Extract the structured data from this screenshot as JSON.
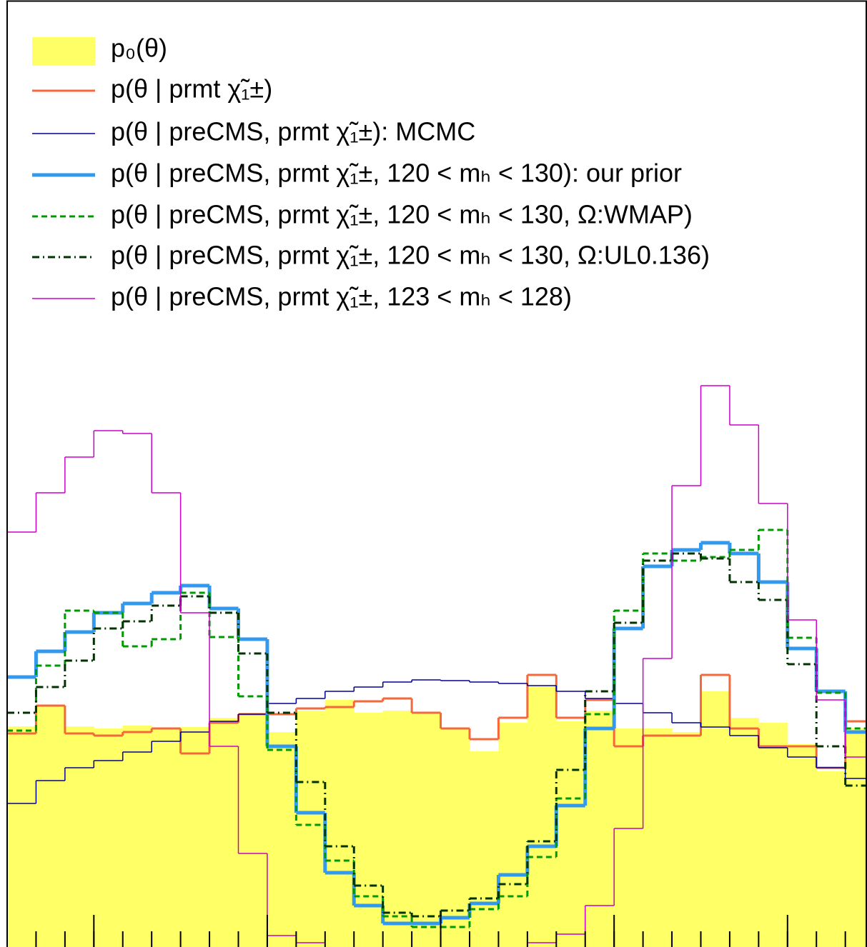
{
  "chart_data": {
    "type": "histogram",
    "bins": [
      0,
      1,
      2,
      3,
      4,
      5,
      6,
      7,
      8,
      9,
      10,
      11,
      12,
      13,
      14,
      15,
      16,
      17,
      18,
      19,
      20,
      21,
      22,
      23,
      24,
      25,
      26,
      27,
      28,
      29,
      30
    ],
    "xlim": [
      0,
      29.75
    ],
    "ylim": [
      0,
      1324
    ],
    "xticks": [
      1,
      2,
      3,
      4,
      5,
      6,
      7,
      8,
      9,
      10,
      11,
      12,
      13,
      14,
      15,
      16,
      17,
      18,
      19,
      20,
      21,
      22,
      23,
      24,
      25,
      26,
      27,
      28,
      29
    ],
    "major_xticks": [
      3,
      9,
      15,
      21,
      27
    ],
    "series": [
      {
        "name": "p₀(θ)",
        "color": "#ffff66",
        "style": "fill",
        "line_width": 0,
        "dash": "none",
        "values": [
          309,
          338,
          309,
          306,
          310,
          306,
          308,
          321,
          326,
          301,
          331,
          346,
          328,
          331,
          326,
          306,
          274,
          314,
          366,
          316,
          331,
          306,
          306,
          301,
          358,
          321,
          314,
          284,
          246,
          306
        ]
      },
      {
        "name": "p(θ | prmt χ̃₁±)",
        "color": "#f4683a",
        "style": "line",
        "line_width": 3,
        "dash": "none",
        "values": [
          299,
          338,
          299,
          296,
          301,
          306,
          271,
          314,
          326,
          326,
          334,
          336,
          344,
          348,
          328,
          306,
          291,
          321,
          381,
          321,
          346,
          281,
          296,
          296,
          381,
          306,
          281,
          281,
          251,
          316
        ]
      },
      {
        "name": "p(θ | preCMS, prmt χ̃₁±): MCMC",
        "color": "#000099",
        "style": "line",
        "line_width": 1.5,
        "dash": "none",
        "values": [
          201,
          233,
          251,
          261,
          273,
          288,
          301,
          316,
          326,
          341,
          348,
          358,
          364,
          371,
          374,
          373,
          371,
          369,
          366,
          358,
          348,
          341,
          328,
          314,
          308,
          296,
          279,
          266,
          251,
          236
        ]
      },
      {
        "name": "p(θ | preCMS, prmt χ̃₁±, 120 < mₕ < 130): our prior",
        "color": "#3399ee",
        "style": "line",
        "line_width": 5,
        "dash": "none",
        "values": [
          378,
          414,
          441,
          468,
          481,
          496,
          506,
          474,
          431,
          281,
          188,
          104,
          58,
          33,
          33,
          41,
          61,
          101,
          141,
          198,
          306,
          446,
          533,
          556,
          566,
          551,
          511,
          418,
          358,
          301
        ]
      },
      {
        "name": "p(θ | preCMS, prmt χ̃₁±, 120 < mₕ < 130,  Ω:WMAP)",
        "color": "#009900",
        "style": "line",
        "line_width": 3,
        "dash": "8 5",
        "values": [
          303,
          394,
          471,
          468,
          421,
          431,
          496,
          434,
          351,
          276,
          171,
          121,
          71,
          43,
          28,
          28,
          53,
          71,
          126,
          208,
          326,
          471,
          551,
          541,
          546,
          556,
          584,
          433,
          356,
          306
        ]
      },
      {
        "name": "p(θ | preCMS, prmt χ̃₁±, 120 < mₕ < 130,  Ω:UL0.136)",
        "color": "#003300",
        "style": "line",
        "line_width": 3,
        "dash": "10 5 2 5",
        "values": [
          328,
          364,
          401,
          446,
          456,
          478,
          491,
          468,
          411,
          328,
          231,
          141,
          86,
          48,
          43,
          51,
          68,
          88,
          148,
          248,
          358,
          454,
          541,
          551,
          544,
          511,
          486,
          396,
          281,
          226
        ]
      },
      {
        "name": "p(θ | preCMS, prmt χ̃₁±, 123 < mₕ < 128)",
        "color": "#cc00cc",
        "style": "line",
        "line_width": 1.5,
        "dash": "none",
        "values": [
          581,
          636,
          686,
          723,
          719,
          636,
          468,
          281,
          131,
          16,
          6,
          -10,
          -20,
          -20,
          -20,
          -20,
          -20,
          -10,
          6,
          18,
          58,
          166,
          404,
          646,
          786,
          731,
          621,
          458,
          346,
          266
        ]
      }
    ]
  }
}
